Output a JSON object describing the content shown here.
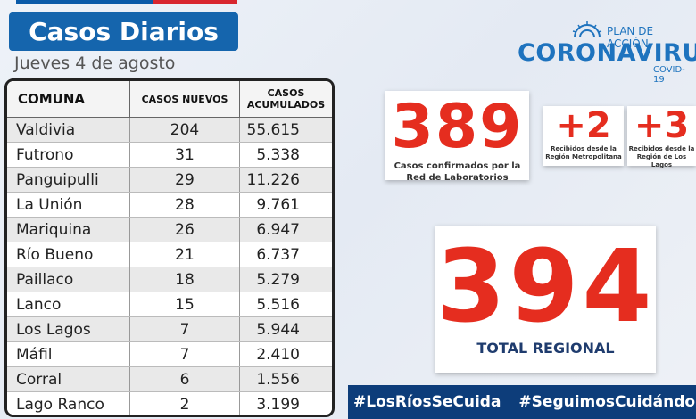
{
  "header": {
    "title": "Casos Diarios",
    "date": "Jueves 4 de agosto"
  },
  "logo": {
    "plan": "PLAN DE ACCIÓN",
    "main": "CORONAVIRUS",
    "sub": "COVID-19"
  },
  "table": {
    "headers": [
      "COMUNA",
      "CASOS NUEVOS",
      "CASOS ACUMULADOS"
    ],
    "rows": [
      {
        "comuna": "Valdivia",
        "nuevos": "204",
        "acumulados": "55.615"
      },
      {
        "comuna": "Futrono",
        "nuevos": "31",
        "acumulados": "5.338"
      },
      {
        "comuna": "Panguipulli",
        "nuevos": "29",
        "acumulados": "11.226"
      },
      {
        "comuna": "La Unión",
        "nuevos": "28",
        "acumulados": "9.761"
      },
      {
        "comuna": "Mariquina",
        "nuevos": "26",
        "acumulados": "6.947"
      },
      {
        "comuna": "Río Bueno",
        "nuevos": "21",
        "acumulados": "6.737"
      },
      {
        "comuna": "Paillaco",
        "nuevos": "18",
        "acumulados": "5.279"
      },
      {
        "comuna": "Lanco",
        "nuevos": "15",
        "acumulados": "5.516"
      },
      {
        "comuna": "Los Lagos",
        "nuevos": "7",
        "acumulados": "5.944"
      },
      {
        "comuna": "Máfil",
        "nuevos": "7",
        "acumulados": "2.410"
      },
      {
        "comuna": "Corral",
        "nuevos": "6",
        "acumulados": "1.556"
      },
      {
        "comuna": "Lago Ranco",
        "nuevos": "2",
        "acumulados": "3.199"
      }
    ]
  },
  "stats": {
    "lab": {
      "value": "389",
      "label_1": "Casos confirmados por la",
      "label_2": "Red de Laboratorios"
    },
    "rm": {
      "value": "+2",
      "label_1": "Recibidos desde la",
      "label_2": "Región Metropolitana"
    },
    "los_lagos": {
      "value": "+3",
      "label_1": "Recibidos desde la",
      "label_2": "Región de Los Lagos"
    },
    "total": {
      "value": "394",
      "label": "TOTAL REGIONAL"
    }
  },
  "footer": {
    "tag1": "#LosRíosSeCuida",
    "tag2": "#SeguimosCuidándonos"
  },
  "colors": {
    "accent_red": "#e52d1f",
    "brand_blue": "#1565ad",
    "footer_blue": "#0d3d7a"
  }
}
